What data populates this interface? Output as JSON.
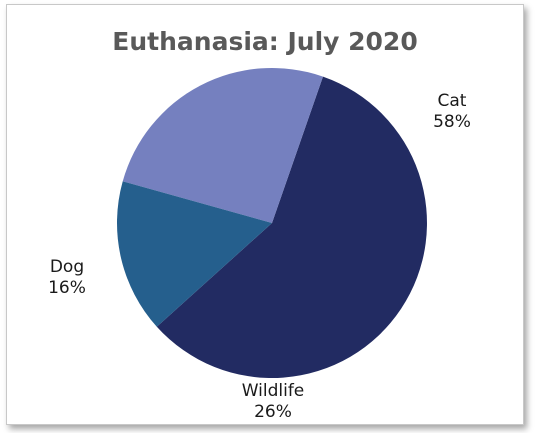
{
  "chart_data": {
    "type": "pie",
    "title": "Euthanasia: July 2020",
    "slices": [
      {
        "label": "Cat",
        "value": 58,
        "display": "58%",
        "color": "#222b62"
      },
      {
        "label": "Wildlife",
        "value": 26,
        "display": "26%",
        "color": "#7580bf"
      },
      {
        "label": "Dog",
        "value": 16,
        "display": "16%",
        "color": "#255f8d"
      }
    ]
  }
}
